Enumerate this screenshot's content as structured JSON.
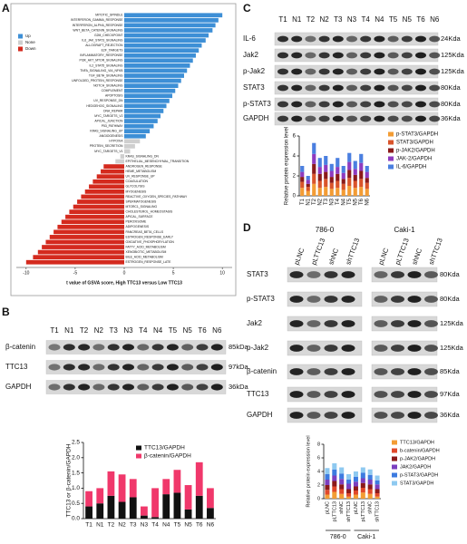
{
  "panel_labels": [
    "A",
    "B",
    "C",
    "D"
  ],
  "chart_data": [
    {
      "type": "hbar",
      "xlabel": "t value of GSVA score, High TTC13 versus Low TTC13",
      "categories": [
        "MITOTIC_SPINDLE",
        "INTERFERON_GAMMA_RESPONSE",
        "INTERFERON_ALPHA_RESPONSE",
        "WNT_BETA_CATENIN_SIGNALING",
        "G2M_CHECKPOINT",
        "IL6_JAK_STAT3_SIGNALING",
        "ALLOGRAFT_REJECTION",
        "E2F_TARGETS",
        "INFLAMMATORY_RESPONSE",
        "PI3K_AKT_MTOR_SIGNALING",
        "IL2_STAT5_SIGNALING",
        "TNFA_SIGNALING_VIA_NFKB",
        "TGF_BETA_SIGNALING",
        "UNFOLDED_PROTEIN_RESPONSE",
        "NOTCH_SIGNALING",
        "COMPLEMENT",
        "APOPTOSIS",
        "UV_RESPONSE_DN",
        "HEDGEHOG_SIGNALING",
        "DNA_REPAIR",
        "MYC_TARGETS_V2",
        "APICAL_JUNCTION",
        "P53_PATHWAY",
        "KRAS_SIGNALING_UP",
        "ANGIOGENESIS",
        "HYPOXIA",
        "PROTEIN_SECRETION",
        "MYC_TARGETS_V1",
        "KRAS_SIGNALING_DN",
        "EPITHELIAL_MESENCHYMAL_TRANSITION",
        "ANDROGEN_RESPONSE",
        "HEME_METABOLISM",
        "UV_RESPONSE_UP",
        "COAGULATION",
        "GLYCOLYSIS",
        "MYOGENESIS",
        "REACTIVE_OXYGEN_SPECIES_PATHWAY",
        "SPERMATOGENESIS",
        "MTORC1_SIGNALING",
        "CHOLESTEROL_HOMEOSTASIS",
        "APICAL_SURFACE",
        "PEROXISOME",
        "ADIPOGENESIS",
        "PANCREAS_BETA_CELLS",
        "ESTROGEN_RESPONSE_EARLY",
        "OXIDATIVE_PHOSPHORYLATION",
        "FATTY_ACID_METABOLISM",
        "XENOBIOTIC_METABOLISM",
        "BILE_ACID_METABOLISM",
        "ESTROGEN_RESPONSE_LATE"
      ],
      "series": [
        {
          "name": "Up",
          "color": "#3d8fd6",
          "values": [
            10,
            9.6,
            9.3,
            9,
            8.6,
            8.3,
            7.9,
            7.6,
            7.3,
            7,
            6.7,
            6.4,
            6.1,
            5.8,
            5.5,
            5.2,
            4.9,
            4.6,
            4.3,
            4,
            3.7,
            3.4,
            3,
            2.6,
            2.2,
            null,
            null,
            null,
            null,
            null,
            null,
            null,
            null,
            null,
            null,
            null,
            null,
            null,
            null,
            null,
            null,
            null,
            null,
            null,
            null,
            null,
            null,
            null,
            null,
            null
          ]
        },
        {
          "name": "None",
          "color": "#cfcfcf",
          "values": [
            null,
            null,
            null,
            null,
            null,
            null,
            null,
            null,
            null,
            null,
            null,
            null,
            null,
            null,
            null,
            null,
            null,
            null,
            null,
            null,
            null,
            null,
            null,
            null,
            null,
            1.6,
            1.1,
            0.6,
            -0.4,
            -0.9,
            null,
            null,
            null,
            null,
            null,
            null,
            null,
            null,
            null,
            null,
            null,
            null,
            null,
            null,
            null,
            null,
            null,
            null,
            null,
            null
          ]
        },
        {
          "name": "Down",
          "color": "#d42a1e",
          "values": [
            null,
            null,
            null,
            null,
            null,
            null,
            null,
            null,
            null,
            null,
            null,
            null,
            null,
            null,
            null,
            null,
            null,
            null,
            null,
            null,
            null,
            null,
            null,
            null,
            null,
            null,
            null,
            null,
            null,
            null,
            -2.1,
            -2.4,
            -2.8,
            -3.2,
            -3.6,
            -4,
            -4.4,
            -4.8,
            -5.2,
            -5.6,
            -6,
            -6.4,
            -6.8,
            -7.2,
            -7.6,
            -8,
            -8.4,
            -8.8,
            -9.3,
            -10
          ]
        }
      ],
      "xlim": [
        -11,
        11
      ],
      "xticks": [
        -10,
        -5,
        0,
        5,
        10
      ]
    },
    {
      "type": "stacked_bar",
      "ylabel": "TTC13 or β-catenin/GAPDH",
      "categories": [
        "T1",
        "N1",
        "T2",
        "N2",
        "T3",
        "N3",
        "T4",
        "N4",
        "T5",
        "N5",
        "T6",
        "N6"
      ],
      "series": [
        {
          "name": "TTC13/GAPDH",
          "color": "#111111",
          "values": [
            0.4,
            0.5,
            0.75,
            0.55,
            0.7,
            0.1,
            0.05,
            0.8,
            0.85,
            0.3,
            0.75,
            0.35
          ]
        },
        {
          "name": "β-catenin/GAPDH",
          "color": "#f0386b",
          "values": [
            0.5,
            0.5,
            0.8,
            0.9,
            0.6,
            0.3,
            0.95,
            0.5,
            0.75,
            0.8,
            1.1,
            0.65
          ]
        }
      ],
      "ylim": [
        0,
        2.5
      ],
      "yticks": [
        {
          "value": 0,
          "label": "0.0"
        },
        0.5,
        {
          "value": 1,
          "label": "1.0"
        },
        1.5,
        {
          "value": 2,
          "label": "2.0"
        },
        2.5
      ]
    },
    {
      "type": "stacked_bar",
      "ylabel": "Relative protein expression level",
      "categories": [
        "T1",
        "N1",
        "T2",
        "N2",
        "T3",
        "N3",
        "T4",
        "N4",
        "T5",
        "N5",
        "T6",
        "N6"
      ],
      "series": [
        {
          "name": "p-STAT3/GAPDH",
          "color": "#f39c34",
          "values": [
            0.8,
            0.5,
            1.2,
            0.8,
            0.9,
            0.7,
            0.8,
            0.6,
            1,
            0.8,
            0.9,
            0.7
          ]
        },
        {
          "name": "STAT3/GAPDH",
          "color": "#d9542b",
          "values": [
            0.6,
            0.4,
            1,
            0.7,
            0.8,
            0.6,
            0.7,
            0.6,
            0.8,
            0.7,
            0.8,
            0.6
          ]
        },
        {
          "name": "p-JAK2/GAPDH",
          "color": "#8b1a1a",
          "values": [
            0.5,
            0.3,
            1,
            0.7,
            0.7,
            0.6,
            0.7,
            0.5,
            0.8,
            0.6,
            0.8,
            0.5
          ]
        },
        {
          "name": "JAK-2/GAPDH",
          "color": "#8e3bbf",
          "values": [
            0.5,
            0.4,
            1,
            0.7,
            0.7,
            0.6,
            0.7,
            0.6,
            0.8,
            0.6,
            0.8,
            0.6
          ]
        },
        {
          "name": "IL-6/GAPDH",
          "color": "#4a7fe0",
          "values": [
            0.6,
            0.4,
            1.1,
            0.9,
            0.9,
            0.7,
            0.9,
            0.7,
            0.9,
            0.8,
            0.9,
            0.6
          ]
        }
      ],
      "ylim": [
        0,
        6
      ],
      "yticks": [
        0,
        2,
        4,
        6
      ]
    },
    {
      "type": "stacked_bar",
      "ylabel": "Relative protein expression level",
      "categories": [
        "pLNC",
        "pLTTC13",
        "shNC",
        "shTTC13",
        "pLNC",
        "pLTTC13",
        "shNC",
        "shTTC13"
      ],
      "groups": [
        "786-0",
        "Caki-1"
      ],
      "series": [
        {
          "name": "TTC13/GAPDH",
          "color": "#f39c34",
          "values": [
            0.6,
            1,
            0.7,
            0.3,
            0.6,
            0.9,
            0.7,
            0.3
          ]
        },
        {
          "name": "b-catenin/GAPDH",
          "color": "#e0482a",
          "values": [
            0.7,
            0.8,
            0.7,
            0.5,
            0.6,
            0.7,
            0.7,
            0.5
          ]
        },
        {
          "name": "p-JAK2/GAPDH",
          "color": "#8b1a1a",
          "values": [
            0.7,
            0.8,
            0.7,
            0.6,
            0.6,
            0.7,
            0.7,
            0.6
          ]
        },
        {
          "name": "JAK2/GAPDH",
          "color": "#7b3fbf",
          "values": [
            0.8,
            0.8,
            0.8,
            0.8,
            0.7,
            0.7,
            0.7,
            0.7
          ]
        },
        {
          "name": "p-STAT3/GAPDH",
          "color": "#3d7be0",
          "values": [
            0.8,
            0.9,
            0.8,
            0.6,
            0.7,
            0.8,
            0.7,
            0.6
          ]
        },
        {
          "name": "STAT3/GAPDH",
          "color": "#8ec9f0",
          "values": [
            0.9,
            0.9,
            0.9,
            0.8,
            0.8,
            0.8,
            0.8,
            0.7
          ]
        }
      ],
      "ylim": [
        0,
        8
      ],
      "yticks": [
        0,
        2,
        4,
        6,
        8
      ]
    }
  ],
  "blots": [
    {
      "lanes": [
        "T1",
        "N1",
        "T2",
        "N2",
        "T3",
        "N3",
        "T4",
        "N4",
        "T5",
        "N5",
        "T6",
        "N6"
      ],
      "rows": [
        {
          "label": "β-catenin",
          "size": "85kDa"
        },
        {
          "label": "TTC13",
          "size": "97kDa"
        },
        {
          "label": "GAPDH",
          "size": "36kDa"
        }
      ]
    },
    {
      "lanes": [
        "T1",
        "N1",
        "T2",
        "N2",
        "T3",
        "N3",
        "T4",
        "N4",
        "T5",
        "N5",
        "T6",
        "N6"
      ],
      "rows": [
        {
          "label": "IL-6",
          "size": "24Kda"
        },
        {
          "label": "Jak2",
          "size": "125Kda"
        },
        {
          "label": "p-Jak2",
          "size": "125Kda"
        },
        {
          "label": "STAT3",
          "size": "80Kda"
        },
        {
          "label": "p-STAT3",
          "size": "80Kda"
        },
        {
          "label": "GAPDH",
          "size": "36Kda"
        }
      ]
    },
    {
      "groups": [
        "786-0",
        "Caki-1"
      ],
      "lanes": [
        "pLNC",
        "pLTTC13",
        "shNC",
        "shTTC13",
        "pLNC",
        "pLTTC13",
        "shNC",
        "shTTC13"
      ],
      "rows": [
        {
          "label": "STAT3",
          "size": "80Kda"
        },
        {
          "label": "p-STAT3",
          "size": "80Kda"
        },
        {
          "label": "Jak2",
          "size": "125Kda"
        },
        {
          "label": "p-Jak2",
          "size": "125Kda"
        },
        {
          "label": "β-catenin",
          "size": "85Kda"
        },
        {
          "label": "TTC13",
          "size": "97Kda"
        },
        {
          "label": "GAPDH",
          "size": "36Kda"
        }
      ]
    }
  ]
}
